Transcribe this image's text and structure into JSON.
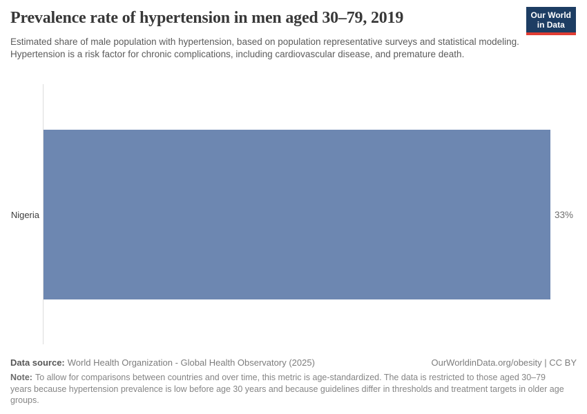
{
  "header": {
    "title": "Prevalence rate of hypertension in men aged 30–79, 2019",
    "subtitle": "Estimated share of male population with hypertension, based on population representative surveys and statistical modeling. Hypertension is a risk factor for chronic complications, including cardiovascular disease, and premature death.",
    "logo": {
      "line1": "Our World",
      "line2": "in Data"
    }
  },
  "chart_data": {
    "type": "bar",
    "orientation": "horizontal",
    "title": "Prevalence rate of hypertension in men aged 30–79, 2019",
    "categories": [
      "Nigeria"
    ],
    "values": [
      33
    ],
    "value_labels": [
      "33%"
    ],
    "unit": "%",
    "xlim": [
      0,
      33
    ],
    "x_axis_visible": false,
    "grid": false,
    "legend": false,
    "bar_color": "#6d87b1"
  },
  "footer": {
    "data_source_label": "Data source:",
    "data_source": "World Health Organization - Global Health Observatory (2025)",
    "attribution": "OurWorldinData.org/obesity | CC BY",
    "note_label": "Note:",
    "note": "To allow for comparisons between countries and over time, this metric is age-standardized. The data is restricted to those aged 30–79 years because hypertension prevalence is low before age 30 years and because guidelines differ in thresholds and treatment targets in older age groups."
  },
  "colors": {
    "bar": "#6d87b1",
    "logo_background": "#1d3d63",
    "logo_accent_red": "#e13d33",
    "axis_line": "#dcdcdc",
    "title_text": "#383838",
    "subtitle_text": "#5b5b5b",
    "footer_text": "#858585"
  }
}
